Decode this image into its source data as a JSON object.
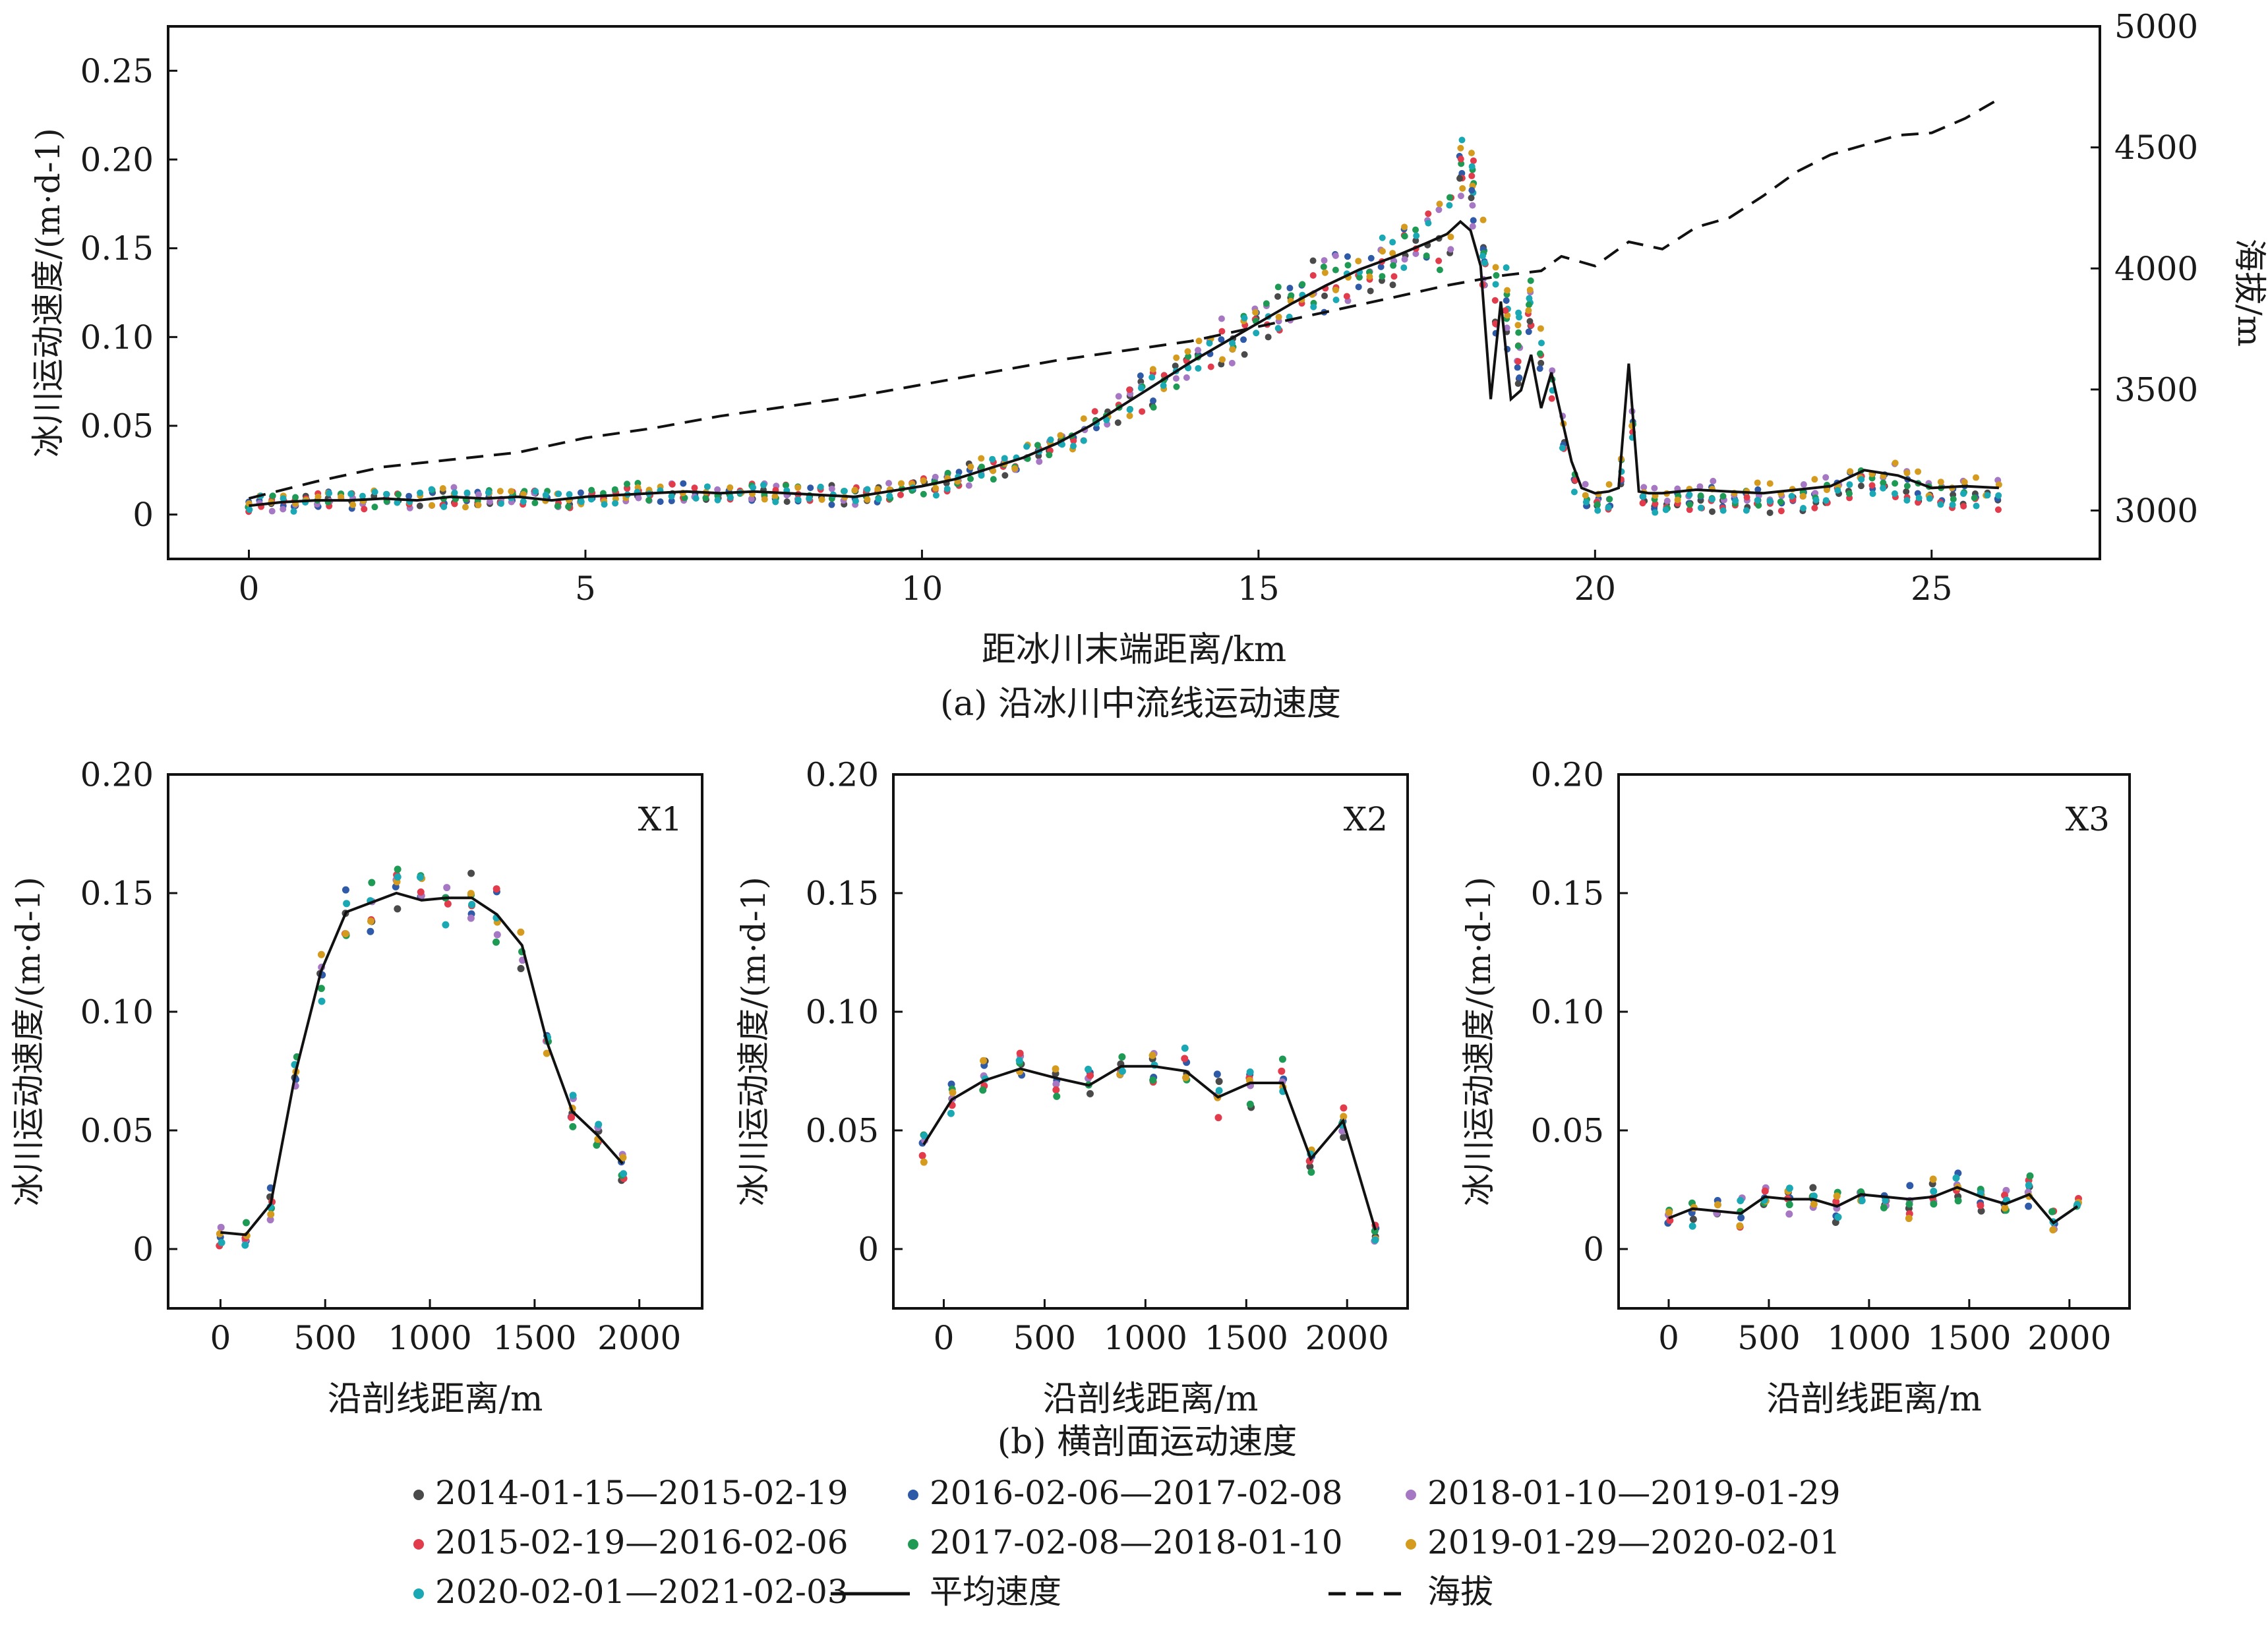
{
  "figure": {
    "caption_a": "(a) 沿冰川中流线运动速度",
    "caption_b": "(b)  横剖面运动速度"
  },
  "legend": {
    "items": [
      {
        "kind": "dot",
        "label": "2014-01-15—2015-02-19",
        "color": "#4a4a4a"
      },
      {
        "kind": "dot",
        "label": "2016-02-06—2017-02-08",
        "color": "#2e5aa8"
      },
      {
        "kind": "dot",
        "label": "2018-01-10—2019-01-29",
        "color": "#a678c4"
      },
      {
        "kind": "dot",
        "label": "2015-02-19—2016-02-06",
        "color": "#e23b4b"
      },
      {
        "kind": "dot",
        "label": "2017-02-08—2018-01-10",
        "color": "#1f9a55"
      },
      {
        "kind": "dot",
        "label": "2019-01-29—2020-02-01",
        "color": "#d49b1e"
      },
      {
        "kind": "dot",
        "label": "2020-02-01—2021-02-03",
        "color": "#1aa8b5"
      },
      {
        "kind": "solid",
        "label": "平均速度",
        "color": "#111111"
      },
      {
        "kind": "dashed",
        "label": "海拔",
        "color": "#111111"
      }
    ]
  },
  "chart_data": [
    {
      "id": "a",
      "type": "scatter",
      "xlabel": "距冰川末端距离/km",
      "ylabel": "冰川运动速度/(m·d-1)",
      "y2label": "海拔/m",
      "xlim": [
        -1.2,
        27.5
      ],
      "ylim": [
        -0.025,
        0.275
      ],
      "y2lim": [
        2800,
        5000
      ],
      "xticks": [
        "0",
        "5",
        "10",
        "15",
        "20",
        "25"
      ],
      "yticks": [
        "0",
        "0.05",
        "0.10",
        "0.15",
        "0.20",
        "0.25"
      ],
      "y2ticks": [
        "3000",
        "3500",
        "4000",
        "4500",
        "5000"
      ],
      "series": [
        {
          "name": "平均速度",
          "style": "solid",
          "x": [
            0,
            0.5,
            1,
            1.5,
            2,
            2.5,
            3,
            3.5,
            4,
            4.5,
            5,
            5.5,
            6,
            6.5,
            7,
            7.5,
            8,
            8.5,
            9,
            9.5,
            10,
            10.5,
            11,
            11.5,
            12,
            12.5,
            13,
            13.5,
            14,
            14.5,
            15,
            15.5,
            16,
            16.5,
            17,
            17.5,
            17.8,
            18.0,
            18.15,
            18.3,
            18.45,
            18.6,
            18.75,
            18.9,
            19.05,
            19.2,
            19.35,
            19.5,
            19.65,
            19.8,
            20.0,
            20.2,
            20.35,
            20.5,
            20.65,
            20.8,
            21.0,
            21.5,
            22,
            22.5,
            23,
            23.5,
            24,
            24.5,
            25,
            25.5,
            26
          ],
          "y": [
            0.005,
            0.007,
            0.008,
            0.008,
            0.009,
            0.008,
            0.01,
            0.009,
            0.01,
            0.008,
            0.01,
            0.011,
            0.012,
            0.013,
            0.012,
            0.013,
            0.012,
            0.011,
            0.01,
            0.013,
            0.016,
            0.02,
            0.026,
            0.032,
            0.04,
            0.05,
            0.062,
            0.074,
            0.086,
            0.097,
            0.108,
            0.119,
            0.129,
            0.138,
            0.145,
            0.153,
            0.158,
            0.165,
            0.16,
            0.14,
            0.065,
            0.12,
            0.065,
            0.07,
            0.09,
            0.06,
            0.08,
            0.055,
            0.03,
            0.015,
            0.012,
            0.013,
            0.015,
            0.085,
            0.013,
            0.012,
            0.012,
            0.014,
            0.013,
            0.012,
            0.014,
            0.016,
            0.025,
            0.022,
            0.015,
            0.016,
            0.015
          ]
        },
        {
          "name": "海拔",
          "style": "dashed",
          "axis": "right",
          "x": [
            0,
            1,
            2,
            3,
            4,
            5,
            6,
            7,
            8,
            9,
            10,
            11,
            12,
            13,
            14,
            15,
            16,
            17,
            17.8,
            18.6,
            19.2,
            19.5,
            20,
            20.5,
            21,
            21.5,
            22,
            22.5,
            23,
            23.5,
            24,
            24.5,
            25,
            25.5,
            26
          ],
          "y": [
            3050,
            3120,
            3180,
            3210,
            3240,
            3300,
            3340,
            3390,
            3430,
            3470,
            3520,
            3570,
            3620,
            3660,
            3700,
            3760,
            3820,
            3880,
            3930,
            3970,
            3990,
            4050,
            4010,
            4110,
            4080,
            4170,
            4210,
            4300,
            4400,
            4470,
            4510,
            4550,
            4560,
            4620,
            4700
          ]
        }
      ]
    },
    {
      "id": "X1",
      "type": "scatter",
      "panel_label": "X1",
      "xlabel": "沿剖线距离/m",
      "ylabel": "冰川运动速度/(m·d-1)",
      "xlim": [
        -250,
        2300
      ],
      "ylim": [
        -0.025,
        0.2
      ],
      "xticks": [
        "0",
        "500",
        "1000",
        "1500",
        "2000"
      ],
      "yticks": [
        "0",
        "0.05",
        "0.10",
        "0.15",
        "0.20"
      ],
      "series": [
        {
          "name": "平均速度",
          "style": "solid",
          "x": [
            0,
            120,
            240,
            360,
            480,
            600,
            720,
            840,
            960,
            1080,
            1200,
            1320,
            1440,
            1560,
            1680,
            1800,
            1920
          ],
          "y": [
            0.007,
            0.006,
            0.019,
            0.075,
            0.117,
            0.142,
            0.146,
            0.15,
            0.147,
            0.148,
            0.148,
            0.141,
            0.128,
            0.087,
            0.058,
            0.048,
            0.036
          ]
        }
      ]
    },
    {
      "id": "X2",
      "type": "scatter",
      "panel_label": "X2",
      "xlabel": "沿剖线距离/m",
      "ylabel": "冰川运动速度/(m·d-1)",
      "xlim": [
        -250,
        2300
      ],
      "ylim": [
        -0.025,
        0.2
      ],
      "xticks": [
        "0",
        "500",
        "1000",
        "1500",
        "2000"
      ],
      "yticks": [
        "0",
        "0.05",
        "0.10",
        "0.15",
        "0.20"
      ],
      "series": [
        {
          "name": "平均速度",
          "style": "solid",
          "x": [
            -100,
            40,
            200,
            380,
            560,
            720,
            880,
            1040,
            1200,
            1360,
            1520,
            1680,
            1820,
            1980,
            2140
          ],
          "y": [
            0.044,
            0.063,
            0.071,
            0.076,
            0.072,
            0.069,
            0.077,
            0.077,
            0.075,
            0.064,
            0.07,
            0.07,
            0.038,
            0.054,
            0.008
          ]
        }
      ]
    },
    {
      "id": "X3",
      "type": "scatter",
      "panel_label": "X3",
      "xlabel": "沿剖线距离/m",
      "ylabel": "冰川运动速度/(m·d-1)",
      "xlim": [
        -250,
        2300
      ],
      "ylim": [
        -0.025,
        0.2
      ],
      "xticks": [
        "0",
        "500",
        "1000",
        "1500",
        "2000"
      ],
      "yticks": [
        "0",
        "0.05",
        "0.10",
        "0.15",
        "0.20"
      ],
      "series": [
        {
          "name": "平均速度",
          "style": "solid",
          "x": [
            0,
            120,
            240,
            360,
            480,
            600,
            720,
            840,
            960,
            1080,
            1200,
            1320,
            1440,
            1560,
            1680,
            1800,
            1920,
            2040
          ],
          "y": [
            0.013,
            0.017,
            0.016,
            0.015,
            0.022,
            0.021,
            0.021,
            0.018,
            0.023,
            0.022,
            0.021,
            0.022,
            0.026,
            0.022,
            0.019,
            0.023,
            0.011,
            0.018
          ]
        }
      ]
    }
  ]
}
